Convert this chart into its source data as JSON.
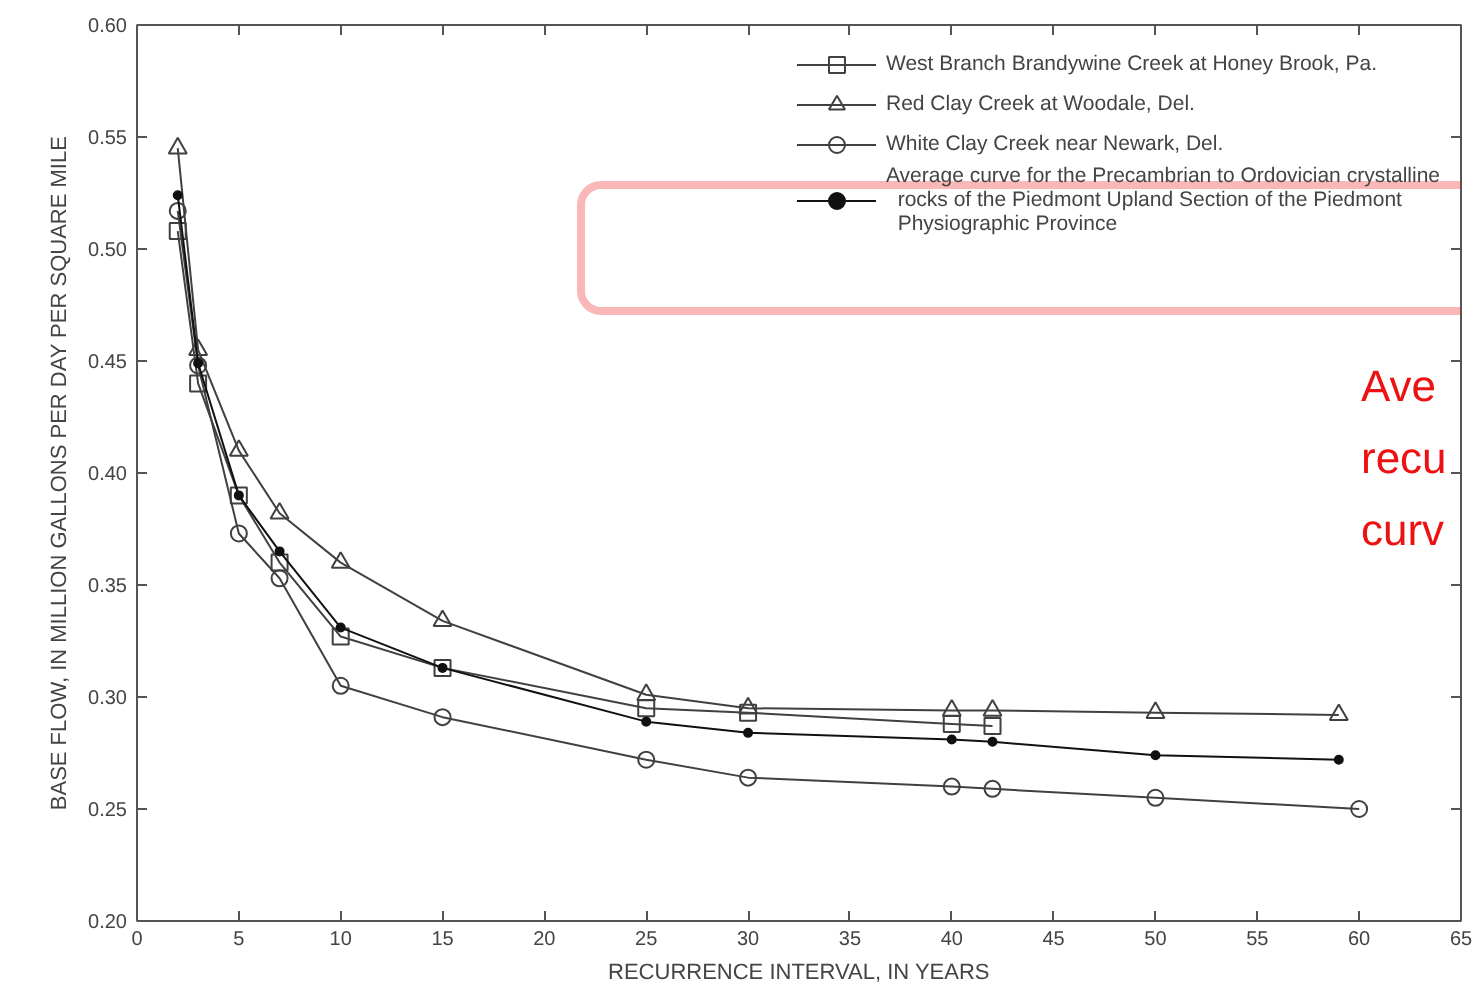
{
  "chart_data": {
    "type": "line",
    "xlabel": "RECURRENCE INTERVAL, IN YEARS",
    "ylabel": "BASE FLOW, IN MILLION GALLONS PER DAY PER SQUARE MILE",
    "xlim": [
      0,
      65
    ],
    "xticks": [
      0,
      5,
      10,
      15,
      20,
      25,
      30,
      35,
      40,
      45,
      50,
      55,
      60,
      65
    ],
    "ylim": [
      0.2,
      0.6
    ],
    "yticks": [
      {
        "value": 0.2,
        "label": "0.20"
      },
      {
        "value": 0.25,
        "label": "0.25"
      },
      {
        "value": 0.3,
        "label": "0.30"
      },
      {
        "value": 0.35,
        "label": "0.35"
      },
      {
        "value": 0.4,
        "label": "0.40"
      },
      {
        "value": 0.45,
        "label": "0.45"
      },
      {
        "value": 0.5,
        "label": "0.50"
      },
      {
        "value": 0.55,
        "label": "0.55"
      },
      {
        "value": 0.6,
        "label": "0.60"
      }
    ],
    "grid": false,
    "legend": "top right",
    "line_style": "solid",
    "series": [
      {
        "name": "West Branch Brandywine Creek at Honey Brook, Pa.",
        "color": "#404040",
        "marker": "square",
        "x": [
          2,
          3,
          5,
          7,
          10,
          15,
          25,
          30,
          40,
          42
        ],
        "values": [
          0.508,
          0.44,
          0.39,
          0.36,
          0.327,
          0.313,
          0.295,
          0.293,
          0.288,
          0.287
        ]
      },
      {
        "name": "Red Clay Creek at Woodale, Del.",
        "color": "#404040",
        "marker": "triangle",
        "x": [
          2,
          3,
          5,
          7,
          10,
          15,
          25,
          30,
          40,
          42,
          50,
          59
        ],
        "values": [
          0.545,
          0.455,
          0.41,
          0.382,
          0.36,
          0.334,
          0.301,
          0.295,
          0.294,
          0.294,
          0.293,
          0.292
        ]
      },
      {
        "name": "White Clay Creek near Newark, Del.",
        "color": "#404040",
        "marker": "circle",
        "x": [
          2,
          3,
          5,
          7,
          10,
          15,
          25,
          30,
          40,
          42,
          50,
          60
        ],
        "values": [
          0.517,
          0.448,
          0.373,
          0.353,
          0.305,
          0.291,
          0.272,
          0.264,
          0.26,
          0.259,
          0.255,
          0.25
        ]
      },
      {
        "name": "Average curve for the Precambrian to Ordovician crystalline\n  rocks of the Piedmont Upland Section of the Piedmont\n  Physiographic Province",
        "color": "#111111",
        "marker": "dot",
        "x": [
          2,
          3,
          5,
          7,
          10,
          15,
          25,
          30,
          40,
          42,
          50,
          59
        ],
        "values": [
          0.524,
          0.449,
          0.39,
          0.365,
          0.331,
          0.313,
          0.289,
          0.284,
          0.281,
          0.28,
          0.274,
          0.272
        ]
      }
    ],
    "annotations": [
      "Ave",
      "recu",
      "curv"
    ]
  }
}
